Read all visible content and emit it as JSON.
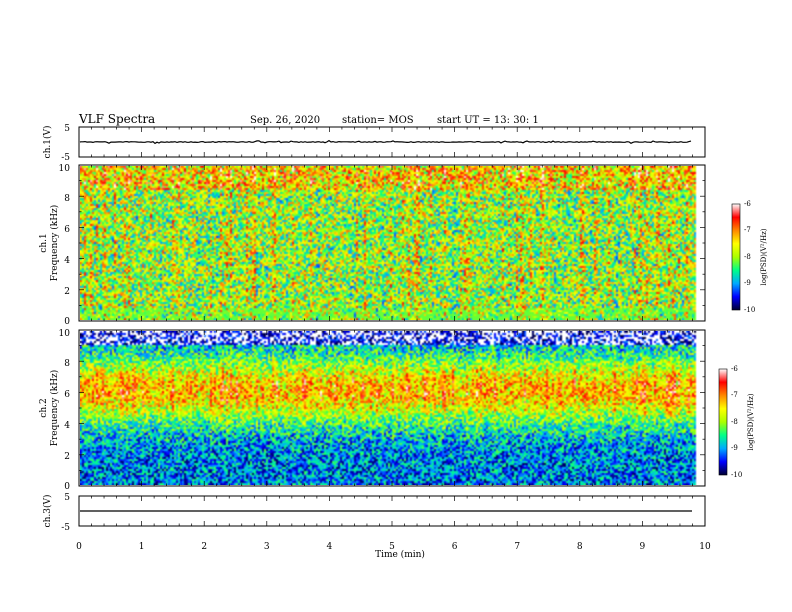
{
  "header": {
    "title": "VLF Spectra",
    "date": "Sep. 26, 2020",
    "station": "station= MOS",
    "start": "start  UT =   13: 30: 1"
  },
  "colors": {
    "colormap": [
      "#000033",
      "#0000ff",
      "#00aaff",
      "#00ff88",
      "#aaff00",
      "#ffff00",
      "#ff8800",
      "#ff0000",
      "#ffffff"
    ]
  },
  "chart_data": [
    {
      "type": "line",
      "name": "ch1-waveform",
      "ylabel": "ch.1(V)",
      "ylim": [
        -5,
        5
      ],
      "yticks": [
        "5",
        "-5"
      ],
      "xlim": [
        0,
        10
      ],
      "level": 0
    },
    {
      "type": "heatmap",
      "name": "ch1-spectrogram",
      "ylabel": "ch.1",
      "ylabel2": "Frequency (kHz)",
      "ylim": [
        0,
        10
      ],
      "yticks": [
        "0",
        "2",
        "4",
        "6",
        "8",
        "10"
      ],
      "xlim": [
        0,
        10
      ],
      "z_range": [
        -10,
        -6
      ],
      "colorbar_label": "log(PSD)(V²/Hz)",
      "colorbar_ticks": [
        "-6",
        "-7",
        "-8",
        "-9",
        "-10"
      ]
    },
    {
      "type": "heatmap",
      "name": "ch2-spectrogram",
      "ylabel": "ch.2",
      "ylabel2": "Frequency (kHz)",
      "ylim": [
        0,
        10
      ],
      "yticks": [
        "0",
        "2",
        "4",
        "6",
        "8",
        "10"
      ],
      "xlim": [
        0,
        10
      ],
      "z_range": [
        -10,
        -6
      ],
      "colorbar_label": "log(PSD)(V²/Hz)",
      "colorbar_ticks": [
        "-6",
        "-7",
        "-8",
        "-9",
        "-10"
      ]
    },
    {
      "type": "line",
      "name": "ch3-waveform",
      "ylabel": "ch.3(V)",
      "ylim": [
        -5,
        5
      ],
      "yticks": [
        "5",
        "-5"
      ],
      "xlim": [
        0,
        10
      ],
      "level": 0
    }
  ],
  "xaxis": {
    "label": "Time (min)",
    "ticks": [
      "0",
      "1",
      "2",
      "3",
      "4",
      "5",
      "6",
      "7",
      "8",
      "9",
      "10"
    ]
  }
}
